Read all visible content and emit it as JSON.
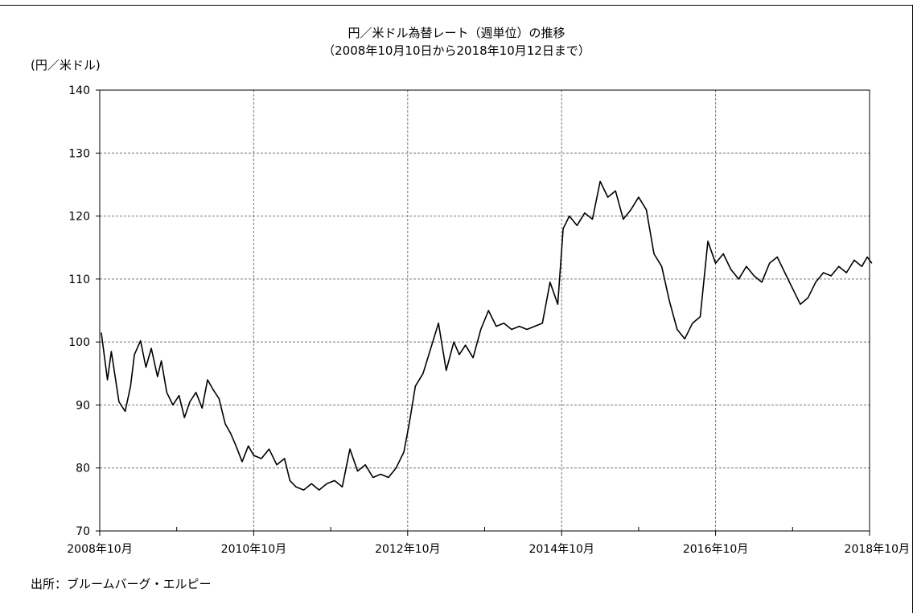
{
  "chart_data": {
    "type": "line",
    "title": "円／米ドル為替レート（週単位）の推移",
    "subtitle": "（2008年10月10日から2018年10月12日まで）",
    "ylabel": "(円／米ドル)",
    "ylim": [
      70,
      140
    ],
    "yticks": [
      70,
      80,
      90,
      100,
      110,
      120,
      130,
      140
    ],
    "xlim": [
      "2008-10",
      "2018-10"
    ],
    "xtick_labels": [
      "2008年10月",
      "2010年10月",
      "2012年10月",
      "2014年10月",
      "2016年10月",
      "2018年10月"
    ],
    "grid": true,
    "source": "出所：ブルームバーグ・エルピー",
    "series": [
      {
        "x": [
          2008.77,
          2008.85,
          2008.9,
          2009.0,
          2009.08,
          2009.15,
          2009.2,
          2009.28,
          2009.35,
          2009.42,
          2009.5,
          2009.55,
          2009.62,
          2009.7,
          2009.78,
          2009.85,
          2009.92,
          2010.0,
          2010.08,
          2010.15,
          2010.22,
          2010.3,
          2010.38,
          2010.45,
          2010.52,
          2010.6,
          2010.68,
          2010.75,
          2010.85,
          2010.95,
          2011.05,
          2011.15,
          2011.22,
          2011.3,
          2011.4,
          2011.5,
          2011.6,
          2011.7,
          2011.8,
          2011.9,
          2012.0,
          2012.1,
          2012.2,
          2012.3,
          2012.4,
          2012.5,
          2012.6,
          2012.7,
          2012.77,
          2012.85,
          2012.95,
          2013.05,
          2013.15,
          2013.25,
          2013.35,
          2013.42,
          2013.5,
          2013.6,
          2013.7,
          2013.8,
          2013.9,
          2014.0,
          2014.1,
          2014.2,
          2014.3,
          2014.4,
          2014.5,
          2014.6,
          2014.7,
          2014.77,
          2014.85,
          2014.95,
          2015.05,
          2015.15,
          2015.25,
          2015.35,
          2015.45,
          2015.55,
          2015.65,
          2015.75,
          2015.85,
          2015.95,
          2016.05,
          2016.15,
          2016.25,
          2016.35,
          2016.45,
          2016.55,
          2016.65,
          2016.75,
          2016.85,
          2016.95,
          2017.05,
          2017.15,
          2017.25,
          2017.35,
          2017.45,
          2017.55,
          2017.65,
          2017.75,
          2017.85,
          2017.95,
          2018.05,
          2018.15,
          2018.25,
          2018.35,
          2018.45,
          2018.55,
          2018.65,
          2018.72,
          2018.78
        ],
        "y": [
          101.5,
          94.0,
          98.5,
          90.5,
          89.0,
          93.0,
          98.0,
          100.2,
          96.0,
          99.0,
          94.5,
          97.0,
          92.0,
          90.0,
          91.5,
          88.0,
          90.5,
          92.0,
          89.5,
          94.0,
          92.5,
          91.0,
          87.0,
          85.5,
          83.5,
          81.0,
          83.5,
          82.0,
          81.5,
          83.0,
          80.5,
          81.5,
          78.0,
          77.0,
          76.5,
          77.5,
          76.5,
          77.5,
          78.0,
          77.0,
          83.0,
          79.5,
          80.5,
          78.5,
          79.0,
          78.5,
          80.0,
          82.5,
          87.0,
          93.0,
          95.0,
          99.0,
          103.0,
          95.5,
          100.0,
          98.0,
          99.5,
          97.5,
          102.0,
          105.0,
          102.5,
          103.0,
          102.0,
          102.5,
          102.0,
          102.5,
          103.0,
          109.5,
          106.0,
          118.0,
          120.0,
          118.5,
          120.5,
          119.5,
          125.5,
          123.0,
          124.0,
          119.5,
          121.0,
          123.0,
          121.0,
          114.0,
          112.0,
          106.5,
          102.0,
          100.5,
          103.0,
          104.0,
          116.0,
          112.5,
          114.0,
          111.5,
          110.0,
          112.0,
          110.5,
          109.5,
          112.5,
          113.5,
          111.0,
          108.5,
          106.0,
          107.0,
          109.5,
          111.0,
          110.5,
          112.0,
          111.0,
          113.0,
          112.0,
          113.5,
          112.5
        ]
      }
    ]
  }
}
